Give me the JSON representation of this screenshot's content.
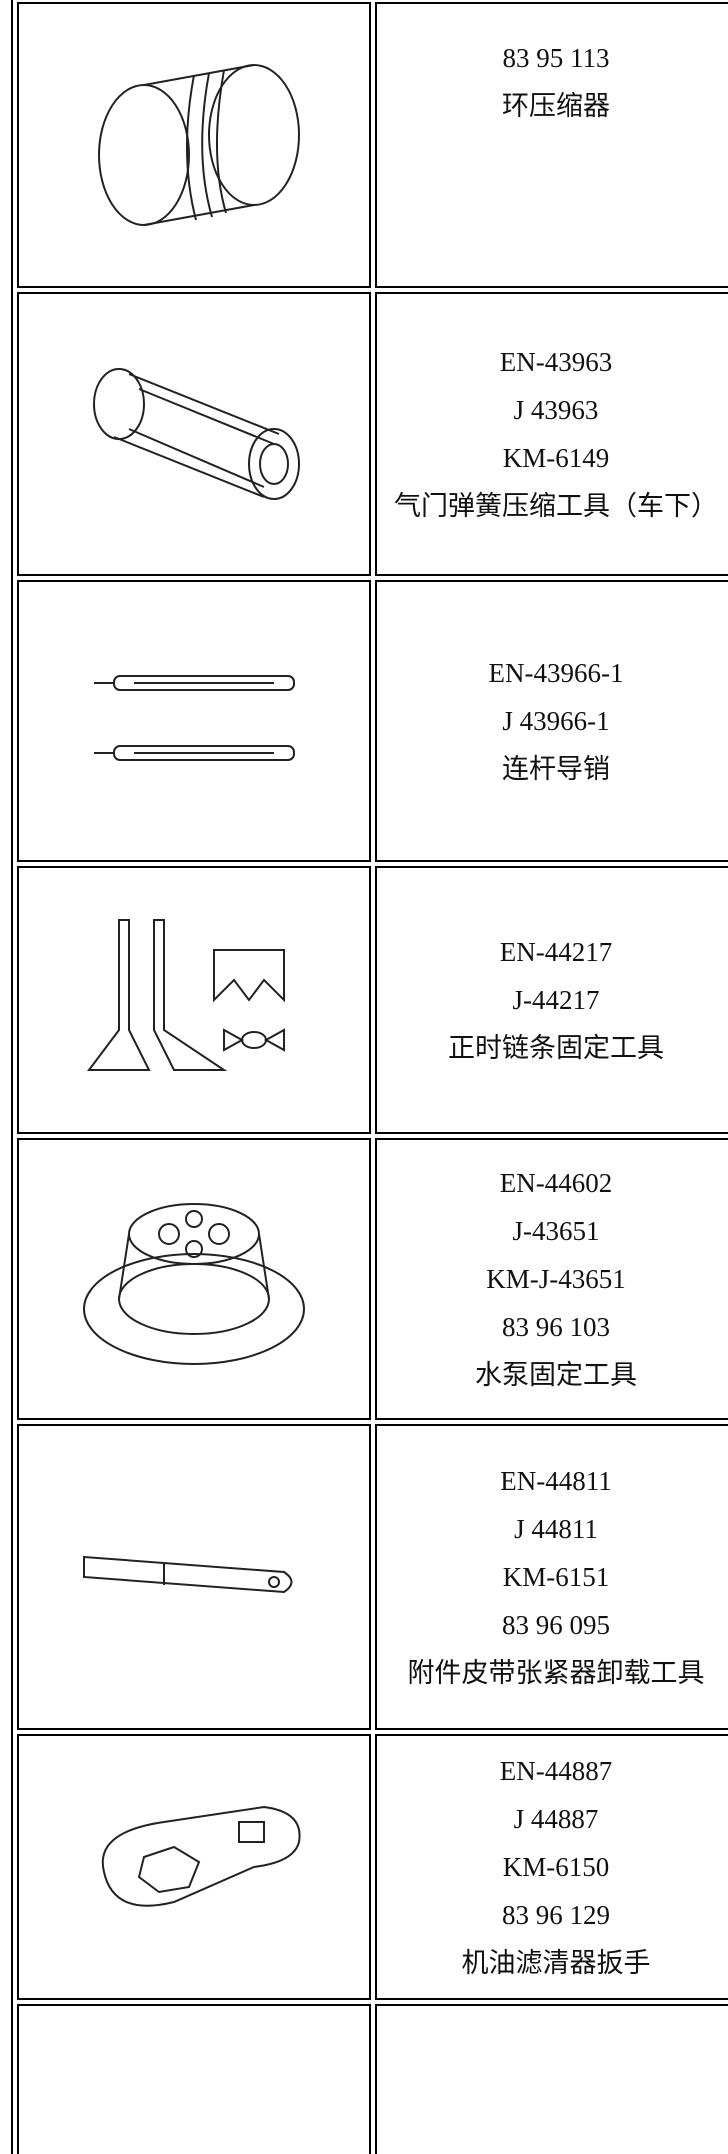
{
  "table": {
    "rows": [
      {
        "lines": [
          "83 95 113",
          "环压缩器"
        ]
      },
      {
        "lines": [
          "EN-43963",
          "J 43963",
          "KM-6149",
          "气门弹簧压缩工具（车下）"
        ]
      },
      {
        "lines": [
          "EN-43966-1",
          "J 43966-1",
          "连杆导销"
        ]
      },
      {
        "lines": [
          "EN-44217",
          "J-44217",
          "正时链条固定工具"
        ]
      },
      {
        "lines": [
          "EN-44602",
          "J-43651",
          "KM-J-43651",
          "83 96 103",
          "水泵固定工具"
        ]
      },
      {
        "lines": [
          "EN-44811",
          "J 44811",
          "KM-6151",
          "83 96 095",
          "附件皮带张紧器卸载工具"
        ]
      },
      {
        "lines": [
          "EN-44887",
          "J 44887",
          "KM-6150",
          "83 96 129",
          "机油滤清器扳手"
        ]
      }
    ]
  }
}
